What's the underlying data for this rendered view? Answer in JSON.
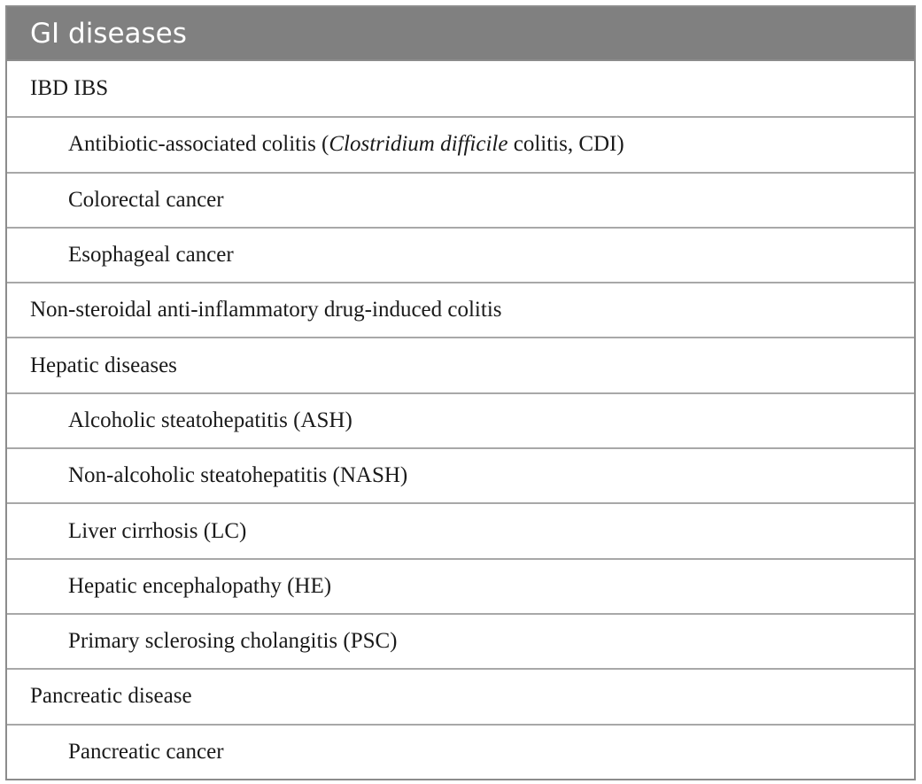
{
  "table": {
    "header": "GI diseases",
    "rows": [
      {
        "level": 0,
        "text": "IBD IBS"
      },
      {
        "level": 1,
        "text_before": "Antibiotic-associated colitis (",
        "text_italic": "Clostridium difficile",
        "text_after": " colitis, CDI)"
      },
      {
        "level": 1,
        "text": "Colorectal cancer"
      },
      {
        "level": 1,
        "text": "Esophageal cancer"
      },
      {
        "level": 0,
        "text": "Non-steroidal anti-inflammatory drug-induced colitis"
      },
      {
        "level": 0,
        "text": "Hepatic diseases"
      },
      {
        "level": 1,
        "text": "Alcoholic steatohepatitis (ASH)"
      },
      {
        "level": 1,
        "text": "Non-alcoholic steatohepatitis (NASH)"
      },
      {
        "level": 1,
        "text": "Liver cirrhosis (LC)"
      },
      {
        "level": 1,
        "text": "Hepatic encephalopathy (HE)"
      },
      {
        "level": 1,
        "text": "Primary sclerosing cholangitis (PSC)"
      },
      {
        "level": 0,
        "text": "Pancreatic disease"
      },
      {
        "level": 1,
        "text": "Pancreatic cancer"
      }
    ]
  }
}
